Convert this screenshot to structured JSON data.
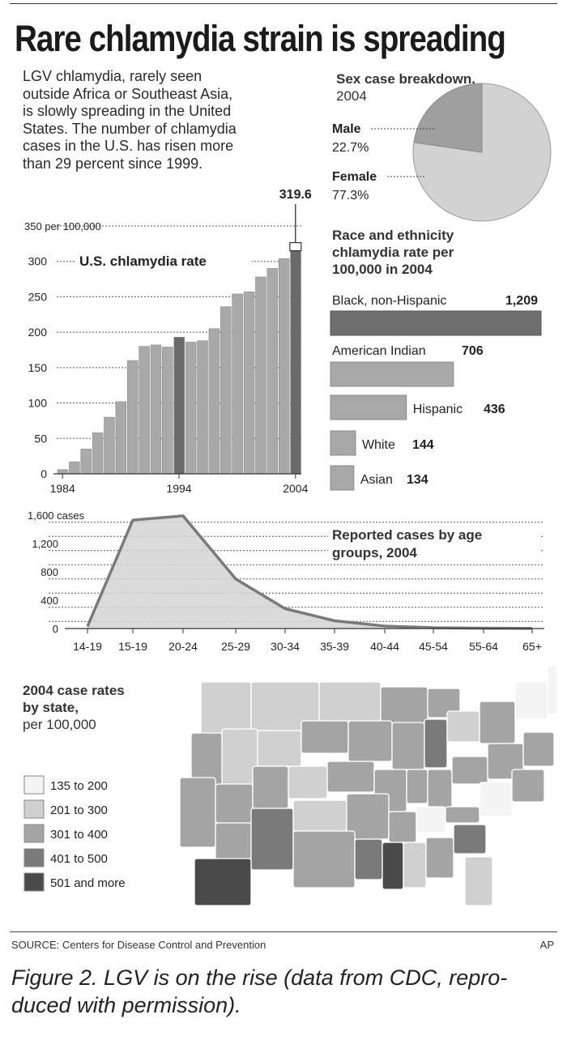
{
  "headline": "Rare chlamydia strain is spreading",
  "intro_lines": [
    "LGV chlamydia, rarely seen",
    "outside Africa or Southeast Asia,",
    "is slowly spreading in the United",
    "States. The number of chlamydia",
    "cases in the U.S. has risen more",
    "than 29 percent since 1999."
  ],
  "source": "SOURCE: Centers for Disease Control and Prevention",
  "credit": "AP",
  "caption_lines": [
    "Figure 2. LGV is on the rise (data from CDC, repro-",
    "duced with permission)."
  ],
  "colors": {
    "bar": "#a9a9a9",
    "bar_highlight": "#6a6a6a",
    "pie_male": "#9f9f9f",
    "pie_female": "#d2d2d2",
    "race_black": "#6e6e6e",
    "race_other": "#a8a8a8",
    "area_fill": "#d4d4d4",
    "area_line": "#7a7a7a",
    "map_bins": [
      "#f4f4f4",
      "#d0d0d0",
      "#a4a4a4",
      "#7a7a7a",
      "#4a4a4a"
    ]
  },
  "chart_data": [
    {
      "type": "bar",
      "title": "U.S. chlamydia rate",
      "ylabel": "per 100,000",
      "ylim": [
        0,
        350
      ],
      "yticks": [
        "0",
        "50",
        "100",
        "150",
        "200",
        "250",
        "300",
        "350 per 100,000"
      ],
      "ytick_values": [
        0,
        50,
        100,
        150,
        200,
        250,
        300,
        350
      ],
      "xtick_labels": [
        "1984",
        "1994",
        "2004"
      ],
      "categories": [
        "1984",
        "1985",
        "1986",
        "1987",
        "1988",
        "1989",
        "1990",
        "1991",
        "1992",
        "1993",
        "1994",
        "1995",
        "1996",
        "1997",
        "1998",
        "1999",
        "2000",
        "2001",
        "2002",
        "2003",
        "2004"
      ],
      "values": [
        6,
        17,
        35,
        58,
        80,
        102,
        160,
        180,
        182,
        179,
        193,
        186,
        188,
        205,
        236,
        254,
        257,
        278,
        290,
        304,
        319.6
      ],
      "highlight": [
        "1994",
        "2004"
      ],
      "annotation": "319.6"
    },
    {
      "type": "pie",
      "title": "Sex case breakdown, 2004",
      "slices": [
        {
          "label": "Male",
          "value": 22.7,
          "value_label": "22.7%"
        },
        {
          "label": "Female",
          "value": 77.3,
          "value_label": "77.3%"
        }
      ]
    },
    {
      "type": "bar",
      "orientation": "horizontal",
      "title_lines": [
        "Race and ethnicity",
        "chlamydia rate per",
        "100,000 in 2004"
      ],
      "categories": [
        "Black, non-Hispanic",
        "American Indian",
        "Hispanic",
        "White",
        "Asian"
      ],
      "values": [
        1209,
        706,
        436,
        144,
        134
      ],
      "value_labels": [
        "1,209",
        "706",
        "436",
        "144",
        "134"
      ]
    },
    {
      "type": "area",
      "title_lines": [
        "Reported cases by age",
        "groups, 2004"
      ],
      "ylim": [
        0,
        1600
      ],
      "yticks": [
        "0",
        "400",
        "800",
        "1,200",
        "1,600 cases"
      ],
      "ytick_values": [
        0,
        400,
        800,
        1200,
        1600
      ],
      "categories": [
        "14-19",
        "15-19",
        "20-24",
        "25-29",
        "30-34",
        "35-39",
        "40-44",
        "45-54",
        "55-64",
        "65+"
      ],
      "values": [
        30,
        1530,
        1590,
        700,
        280,
        110,
        35,
        12,
        4,
        2
      ]
    },
    {
      "type": "map",
      "title_lines": [
        "2004 case rates",
        "by state,",
        "per 100,000"
      ],
      "legend": [
        "135 to 200",
        "201 to 300",
        "301 to 400",
        "401 to 500",
        "501 and more"
      ]
    }
  ]
}
